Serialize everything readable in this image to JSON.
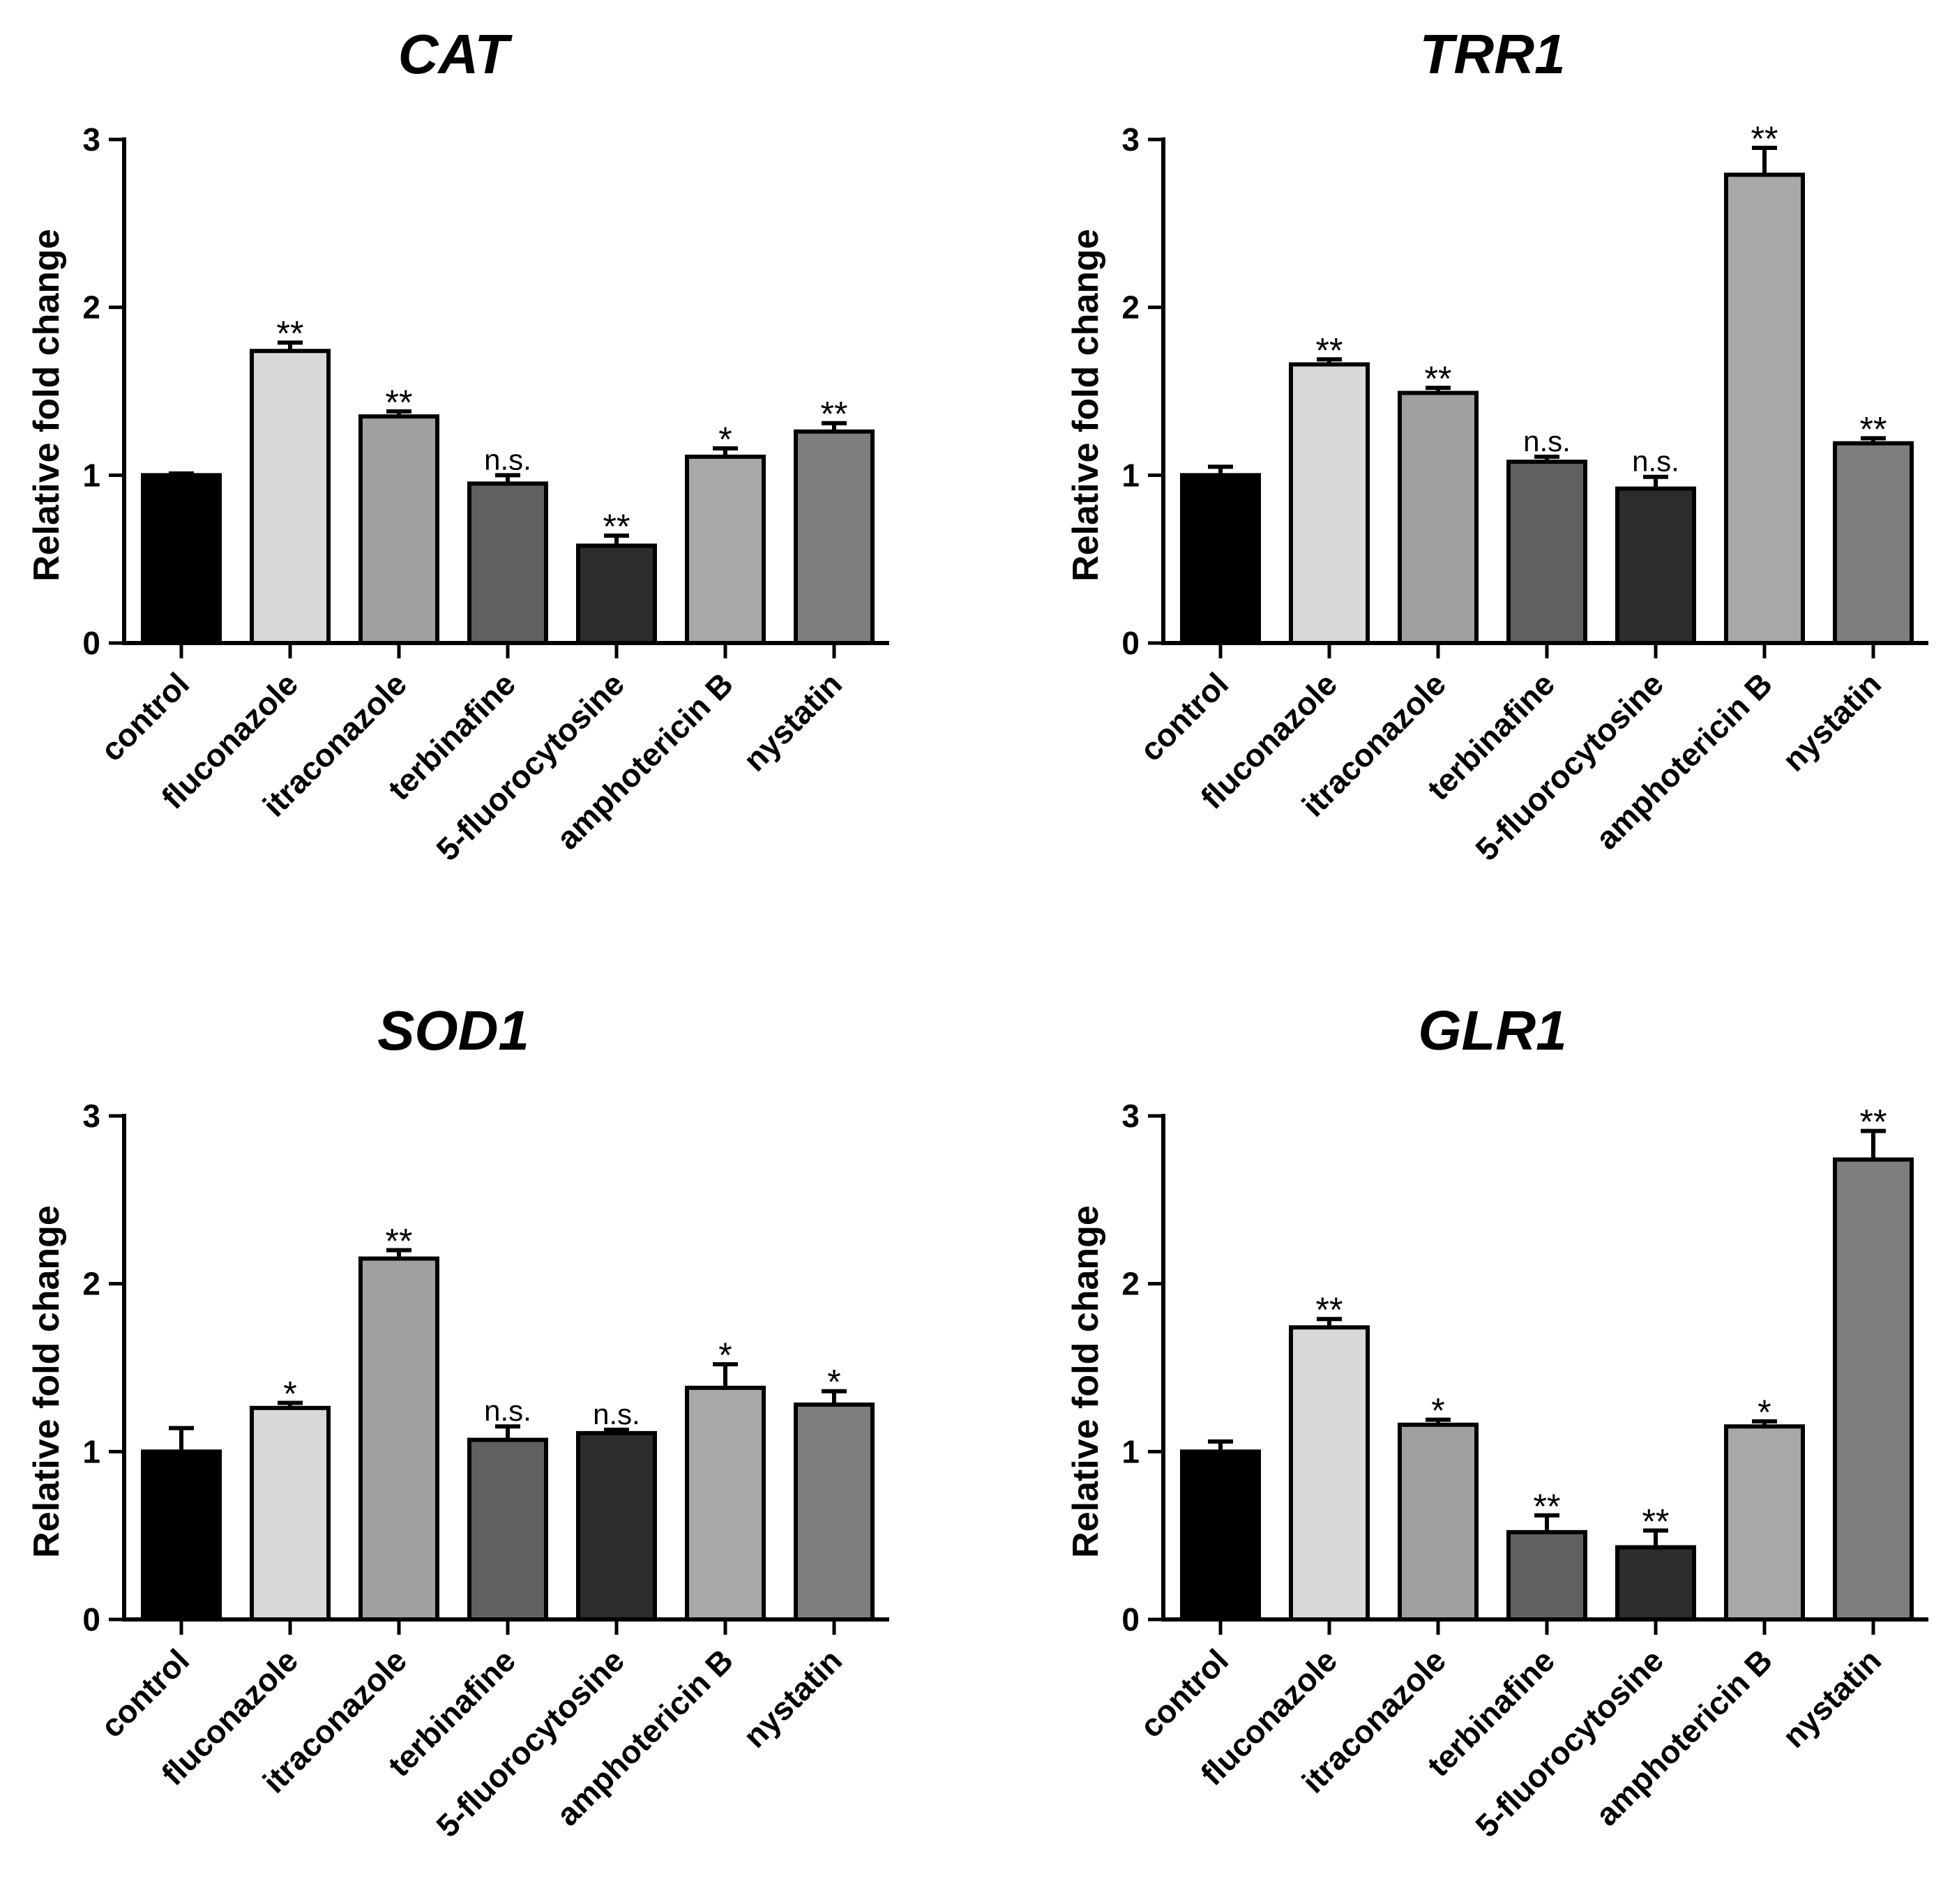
{
  "chart_data": [
    {
      "type": "bar",
      "title": "CAT",
      "xlabel": "",
      "ylabel": "Relative fold change",
      "ylim": [
        0,
        3
      ],
      "yticks": [
        "0",
        "1",
        "2",
        "3"
      ],
      "categories": [
        "control",
        "fluconazole",
        "itraconazole",
        "terbinafine",
        "5-fluorocytosine",
        "amphotericin B",
        "nystatin"
      ],
      "values": [
        1.0,
        1.74,
        1.35,
        0.95,
        0.58,
        1.11,
        1.26
      ],
      "errors": [
        0.01,
        0.05,
        0.03,
        0.05,
        0.06,
        0.05,
        0.05
      ],
      "significance": [
        "",
        "**",
        "**",
        "n.s.",
        "**",
        "*",
        "**"
      ],
      "colors": [
        "#000000",
        "#d8d8d8",
        "#a0a0a0",
        "#606060",
        "#2c2c2c",
        "#a8a8a8",
        "#7e7e7e"
      ]
    },
    {
      "type": "bar",
      "title": "TRR1",
      "xlabel": "",
      "ylabel": "Relative fold change",
      "ylim": [
        0,
        3
      ],
      "yticks": [
        "0",
        "1",
        "2",
        "3"
      ],
      "categories": [
        "control",
        "fluconazole",
        "itraconazole",
        "terbinafine",
        "5-fluorocytosine",
        "amphotericin B",
        "nystatin"
      ],
      "values": [
        1.0,
        1.66,
        1.49,
        1.08,
        0.92,
        2.79,
        1.19
      ],
      "errors": [
        0.05,
        0.03,
        0.03,
        0.03,
        0.07,
        0.16,
        0.03
      ],
      "significance": [
        "",
        "**",
        "**",
        "n.s.",
        "n.s.",
        "**",
        "**"
      ],
      "colors": [
        "#000000",
        "#d8d8d8",
        "#a0a0a0",
        "#606060",
        "#2c2c2c",
        "#a8a8a8",
        "#7e7e7e"
      ]
    },
    {
      "type": "bar",
      "title": "SOD1",
      "xlabel": "",
      "ylabel": "Relative fold change",
      "ylim": [
        0,
        3
      ],
      "yticks": [
        "0",
        "1",
        "2",
        "3"
      ],
      "categories": [
        "control",
        "fluconazole",
        "itraconazole",
        "terbinafine",
        "5-fluorocytosine",
        "amphotericin B",
        "nystatin"
      ],
      "values": [
        1.0,
        1.26,
        2.15,
        1.07,
        1.11,
        1.38,
        1.28
      ],
      "errors": [
        0.14,
        0.03,
        0.05,
        0.08,
        0.02,
        0.14,
        0.08
      ],
      "significance": [
        "",
        "*",
        "**",
        "n.s.",
        "n.s.",
        "*",
        "*"
      ],
      "colors": [
        "#000000",
        "#d8d8d8",
        "#a0a0a0",
        "#606060",
        "#2c2c2c",
        "#a8a8a8",
        "#7e7e7e"
      ]
    },
    {
      "type": "bar",
      "title": "GLR1",
      "xlabel": "",
      "ylabel": "Relative fold change",
      "ylim": [
        0,
        3
      ],
      "yticks": [
        "0",
        "1",
        "2",
        "3"
      ],
      "categories": [
        "control",
        "fluconazole",
        "itraconazole",
        "terbinafine",
        "5-fluorocytosine",
        "amphotericin B",
        "nystatin"
      ],
      "values": [
        1.0,
        1.74,
        1.16,
        0.52,
        0.43,
        1.15,
        2.74
      ],
      "errors": [
        0.06,
        0.05,
        0.03,
        0.1,
        0.1,
        0.03,
        0.17
      ],
      "significance": [
        "",
        "**",
        "*",
        "**",
        "**",
        "*",
        "**"
      ],
      "colors": [
        "#000000",
        "#d8d8d8",
        "#a0a0a0",
        "#606060",
        "#2c2c2c",
        "#a8a8a8",
        "#7e7e7e"
      ]
    }
  ]
}
